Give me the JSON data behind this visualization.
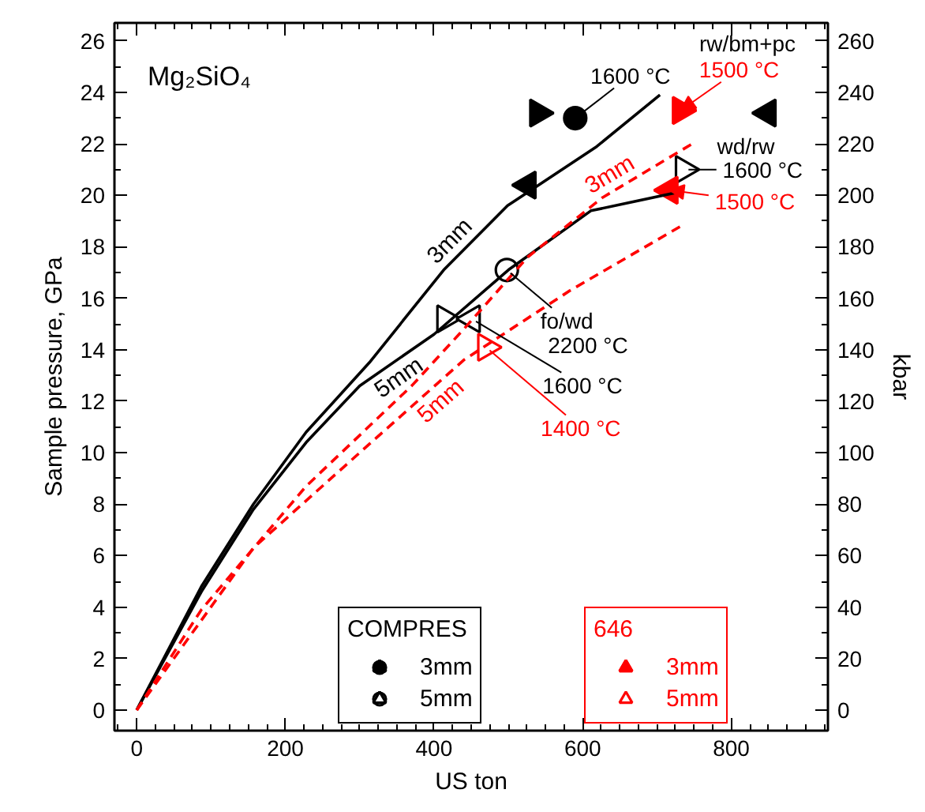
{
  "chart_data": {
    "type": "line",
    "xlabel": "US ton",
    "ylabel": "Sample pressure, GPa",
    "y2label": "kbar",
    "xlim": [
      -30,
      930
    ],
    "ylim": [
      -0.8,
      26.7
    ],
    "y2lim": [
      -8,
      267
    ],
    "xticks": [
      0,
      200,
      400,
      600,
      800
    ],
    "yticks": [
      0,
      2,
      4,
      6,
      8,
      10,
      12,
      14,
      16,
      18,
      20,
      22,
      24,
      26
    ],
    "y2ticks": [
      0,
      20,
      40,
      60,
      80,
      100,
      120,
      140,
      160,
      180,
      200,
      220,
      240,
      260
    ],
    "grid": false,
    "legend": "bottom",
    "legend_title": [
      "COMPRES",
      "646"
    ],
    "series": [
      {
        "name": "3mm",
        "color": "#000000",
        "line_style": "solid",
        "x": [
          0,
          87,
          157,
          228,
          313,
          413,
          499,
          619,
          704
        ],
        "values": [
          0,
          4.8,
          8.0,
          10.8,
          13.5,
          17.1,
          19.6,
          21.9,
          23.9
        ]
      },
      {
        "name": "5mm",
        "color": "#000000",
        "line_style": "solid",
        "x": [
          0,
          87,
          157,
          228,
          300,
          400,
          500,
          611,
          725
        ],
        "values": [
          0,
          4.6,
          7.8,
          10.4,
          12.6,
          14.6,
          17.1,
          19.4,
          20.1
        ]
      },
      {
        "name": "3mm",
        "color": "#ff0000",
        "line_style": "dashed",
        "x": [
          0,
          87,
          228,
          370,
          440,
          526,
          626,
          753
        ],
        "values": [
          0,
          3.9,
          8.7,
          12.6,
          14.8,
          17.6,
          19.9,
          22.1
        ]
      },
      {
        "name": "5mm",
        "color": "#ff0000",
        "line_style": "dashed",
        "x": [
          0,
          157,
          300,
          440,
          583,
          732
        ],
        "values": [
          0,
          6.3,
          10.0,
          13.6,
          16.3,
          18.8
        ]
      },
      {
        "type": "scatter",
        "name": "3mm",
        "color": "#000000",
        "marker": "circle",
        "x": [
          590
        ],
        "values": [
          23.0
        ]
      },
      {
        "type": "scatter",
        "color": "#000000",
        "marker": "triangle_right",
        "x": [
          540
        ],
        "values": [
          23.2
        ]
      },
      {
        "type": "scatter",
        "color": "#000000",
        "marker": "triangle_left",
        "x": [
          849,
          526
        ],
        "values": [
          23.2,
          20.4
        ]
      },
      {
        "type": "scatter",
        "name": "5mm",
        "color": "#000000",
        "marker": "circle_open",
        "x": [
          498
        ],
        "values": [
          17.1
        ]
      },
      {
        "type": "scatter",
        "color": "#000000",
        "marker": "triangle_right_open",
        "x": [
          736,
          415
        ],
        "values": [
          21.0,
          15.2
        ]
      },
      {
        "type": "scatter",
        "color": "#000000",
        "marker": "triangle_left_open",
        "x": [
          451
        ],
        "values": [
          15.2
        ]
      },
      {
        "type": "scatter",
        "name": "3mm",
        "color": "#ff0000",
        "marker": "triangle_right",
        "x": [
          732
        ],
        "values": [
          23.3
        ]
      },
      {
        "type": "scatter",
        "color": "#ff0000",
        "marker": "triangle_left",
        "x": [
          717
        ],
        "values": [
          20.2
        ]
      },
      {
        "type": "scatter",
        "name": "5mm",
        "color": "#ff0000",
        "marker": "triangle_right_open",
        "x": [
          470
        ],
        "values": [
          14.1
        ]
      }
    ],
    "annotations": [
      "Mg₂SiO₄",
      {
        "text": "1600 °C",
        "x": 590,
        "y": 23.0
      },
      "rw/bm+pc",
      {
        "text": "1500 °C",
        "x": 732,
        "y": 23.3
      },
      "wd/rw",
      {
        "text": "1600 °C",
        "x": 736,
        "y": 21.0
      },
      {
        "text": "1500 °C",
        "x": 717,
        "y": 20.2
      },
      {
        "text": "fo/wd",
        "x": 498,
        "y": 17.1
      },
      "2200 °C",
      {
        "text": "1600 °C",
        "x": 451,
        "y": 15.2
      },
      {
        "text": "1400 °C",
        "x": 470,
        "y": 14.1
      }
    ]
  }
}
